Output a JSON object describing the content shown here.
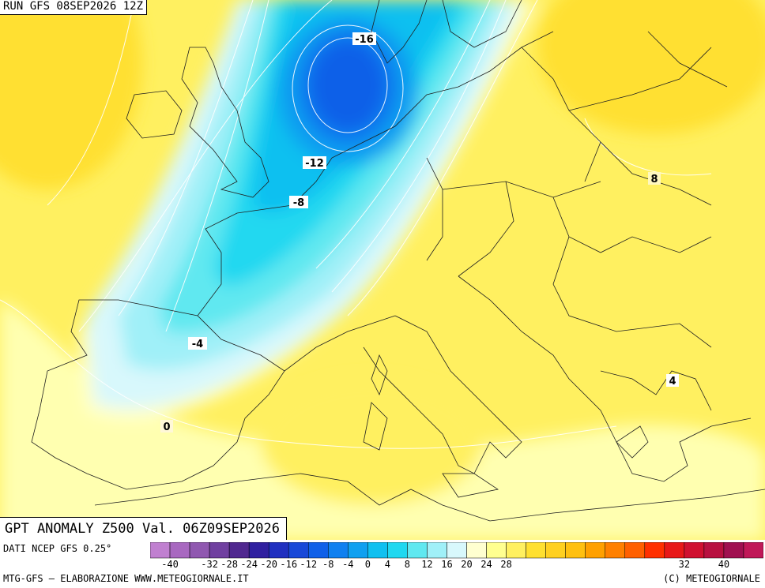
{
  "header": {
    "run": "RUN GFS 08SEP2026 12Z"
  },
  "footer": {
    "title": "GPT ANOMALY Z500 Val. 06Z09SEP2026",
    "source": "DATI NCEP GFS 0.25°",
    "credit": "MTG-GFS — ELABORAZIONE WWW.METEOGIORNALE.IT",
    "copyright": "(C) METEOGIORNALE"
  },
  "colorbar": {
    "colors": [
      "#c080d0",
      "#a868c0",
      "#9058b0",
      "#7040a0",
      "#502890",
      "#3020a0",
      "#2030c0",
      "#1848d8",
      "#1060e8",
      "#1080f0",
      "#10a0f0",
      "#10c0f0",
      "#20d8f0",
      "#60e8f0",
      "#a0f0f8",
      "#d8f8fc",
      "#ffffd0",
      "#ffff90",
      "#fff060",
      "#ffe030",
      "#ffd020",
      "#ffc010",
      "#ffa000",
      "#ff8000",
      "#ff6000",
      "#ff3000",
      "#e81818",
      "#d01030",
      "#b81040",
      "#a01050",
      "#c01858"
    ],
    "tick_labels": [
      "-40",
      "-32",
      "-28",
      "-24",
      "-20",
      "-16",
      "-12",
      "-8",
      "-4",
      "0",
      "4",
      "8",
      "12",
      "16",
      "20",
      "24",
      "28",
      "32",
      "40"
    ]
  },
  "map": {
    "contour_labels": [
      "-16",
      "-12",
      "-8",
      "-4",
      "0",
      "8",
      "4"
    ]
  }
}
